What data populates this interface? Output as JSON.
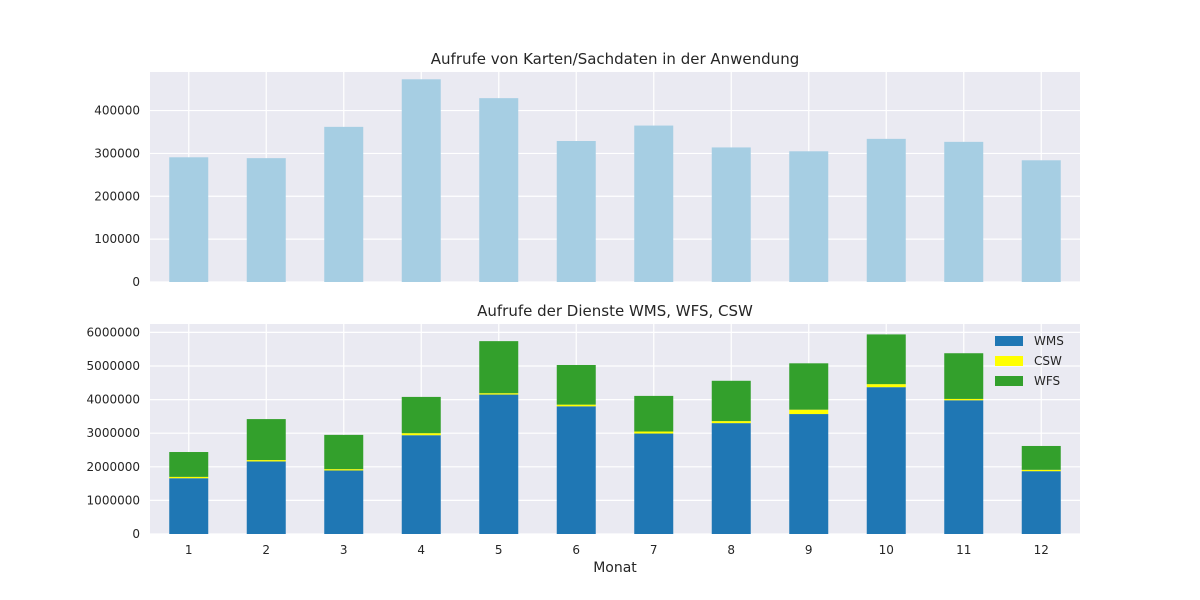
{
  "chart_data": [
    {
      "type": "bar",
      "title": "Aufrufe von Karten/Sachdaten in der Anwendung",
      "categories": [
        "1",
        "2",
        "3",
        "4",
        "5",
        "6",
        "7",
        "8",
        "9",
        "10",
        "11",
        "12"
      ],
      "values": [
        291000,
        289000,
        362000,
        473000,
        429000,
        329000,
        365000,
        314000,
        305000,
        334000,
        327000,
        284000
      ],
      "ylim": [
        0,
        490000
      ],
      "yticks": [
        0,
        100000,
        200000,
        300000,
        400000
      ],
      "color": "#a6cee3",
      "grid": true,
      "xlabel": "",
      "ylabel": ""
    },
    {
      "type": "bar",
      "stacked": true,
      "title": "Aufrufe der Dienste WMS, WFS, CSW",
      "categories": [
        "1",
        "2",
        "3",
        "4",
        "5",
        "6",
        "7",
        "8",
        "9",
        "10",
        "11",
        "12"
      ],
      "series": [
        {
          "name": "WMS",
          "color": "#1f77b4",
          "values": [
            1660000,
            2160000,
            1890000,
            2940000,
            4150000,
            3800000,
            2990000,
            3300000,
            3570000,
            4370000,
            3980000,
            1870000
          ]
        },
        {
          "name": "CSW",
          "color": "#ffff00",
          "values": [
            40000,
            40000,
            40000,
            60000,
            40000,
            50000,
            60000,
            60000,
            130000,
            90000,
            40000,
            40000
          ]
        },
        {
          "name": "WFS",
          "color": "#33a02c",
          "values": [
            740000,
            1220000,
            1020000,
            1080000,
            1550000,
            1180000,
            1060000,
            1200000,
            1380000,
            1480000,
            1360000,
            710000
          ]
        }
      ],
      "ylim": [
        0,
        6250000
      ],
      "yticks": [
        0,
        1000000,
        2000000,
        3000000,
        4000000,
        5000000,
        6000000
      ],
      "xlabel": "Monat",
      "ylabel": "",
      "legend": "top-right",
      "grid": true
    }
  ]
}
